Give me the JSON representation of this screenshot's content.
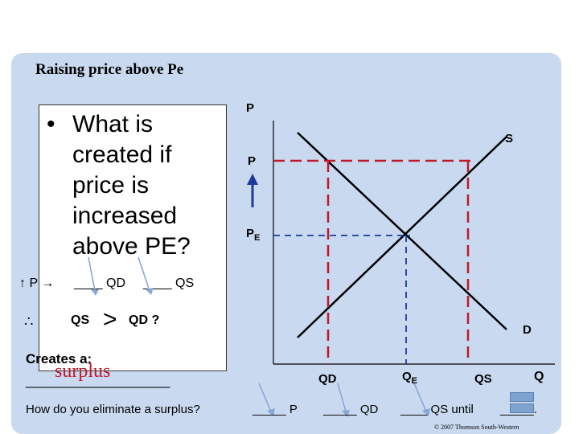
{
  "slide": {
    "title": "Raising price above Pe",
    "question_bullet": "•",
    "question": "What is created if price is increased above PE?"
  },
  "left_notes": {
    "line1_arrow": "↑ P →",
    "line1_qd": "____ QD",
    "line1_qs": "____ QS",
    "therefore": "∴",
    "qs": "QS",
    "gt": ">",
    "qd": "QD ?",
    "creates": "Creates a:",
    "blank": "___________________",
    "surplus": "surplus",
    "eliminate": "How do you eliminate a surplus?"
  },
  "graph": {
    "p_axis": "P",
    "s_label": "S",
    "p_raised": "P",
    "pe_label": "P",
    "pe_sub": "E",
    "d_label": "D",
    "q_axis": "Q",
    "qd_label": "QD",
    "qe_label": "Q",
    "qe_sub": "E",
    "qs_label": "QS"
  },
  "bottom": {
    "blank_p": "_____ P",
    "blank_qd": "_____ QD",
    "blank_qs": "____ QS  until",
    "blank_end": "_____."
  },
  "copyright": "© 2007 Thomson South-Western",
  "colors": {
    "panel": "#c9daf0",
    "red_dash": "#c0182a",
    "blue": "#1a3a9c",
    "surplus": "#c0182a"
  }
}
